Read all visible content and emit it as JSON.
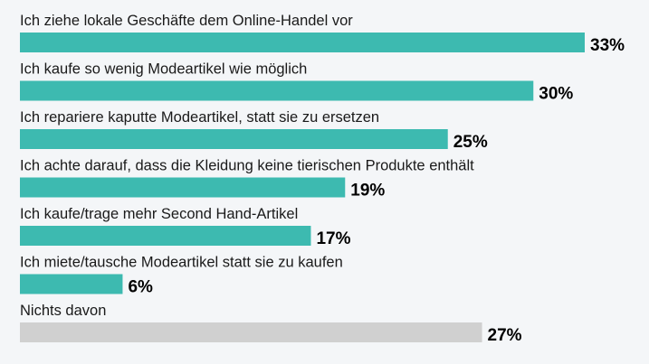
{
  "colors": {
    "background": "#f4f6f8",
    "bar_primary": "#3dbab0",
    "bar_neutral": "#d0d0d0",
    "label_text": "#1a1a1a",
    "value_text": "#000000"
  },
  "chart_data": {
    "type": "bar",
    "orientation": "horizontal",
    "unit": "%",
    "xlim": [
      0,
      33
    ],
    "grid": false,
    "legend": "none",
    "categories": [
      "Ich ziehe lokale Geschäfte dem Online-Handel vor",
      "Ich kaufe so wenig Modeartikel wie möglich",
      "Ich repariere kaputte Modeartikel, statt sie zu ersetzen",
      "Ich achte darauf, dass die Kleidung keine tierischen Produkte enthält",
      "Ich kaufe/trage mehr Second Hand-Artikel",
      "Ich miete/tausche Modeartikel statt sie zu kaufen",
      "Nichts davon"
    ],
    "values": [
      33,
      30,
      25,
      19,
      17,
      6,
      27
    ],
    "value_labels": [
      "33%",
      "30%",
      "25%",
      "19%",
      "17%",
      "6%",
      "27%"
    ],
    "bar_colors": [
      "#3dbab0",
      "#3dbab0",
      "#3dbab0",
      "#3dbab0",
      "#3dbab0",
      "#3dbab0",
      "#d0d0d0"
    ]
  }
}
